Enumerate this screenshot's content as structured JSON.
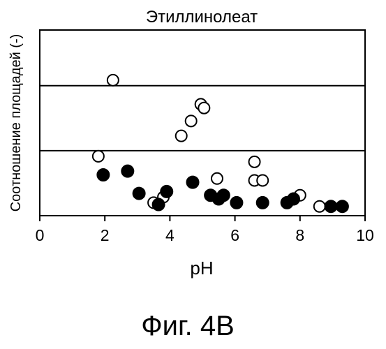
{
  "chart_data": {
    "type": "scatter",
    "title": "Этиллинолеат",
    "xlabel": "pH",
    "ylabel": "Соотношение площадей (-)",
    "xlim": [
      0,
      10
    ],
    "xticks": [
      "0",
      "2",
      "4",
      "6",
      "8",
      "10"
    ],
    "yticks": [],
    "grid": "horizontal lines",
    "series": [
      {
        "marker": "open-circle",
        "points": [
          {
            "x": 1.8,
            "y": 0.32
          },
          {
            "x": 2.25,
            "y": 0.73
          },
          {
            "x": 3.5,
            "y": 0.07
          },
          {
            "x": 3.8,
            "y": 0.1
          },
          {
            "x": 4.35,
            "y": 0.43
          },
          {
            "x": 4.65,
            "y": 0.51
          },
          {
            "x": 4.95,
            "y": 0.6
          },
          {
            "x": 5.05,
            "y": 0.58
          },
          {
            "x": 5.45,
            "y": 0.2
          },
          {
            "x": 6.6,
            "y": 0.29
          },
          {
            "x": 6.6,
            "y": 0.19
          },
          {
            "x": 6.85,
            "y": 0.19
          },
          {
            "x": 8.0,
            "y": 0.11
          },
          {
            "x": 8.6,
            "y": 0.05
          }
        ]
      },
      {
        "marker": "filled-circle",
        "points": [
          {
            "x": 1.95,
            "y": 0.22
          },
          {
            "x": 2.7,
            "y": 0.24
          },
          {
            "x": 3.05,
            "y": 0.12
          },
          {
            "x": 3.65,
            "y": 0.06
          },
          {
            "x": 3.9,
            "y": 0.13
          },
          {
            "x": 4.7,
            "y": 0.18
          },
          {
            "x": 5.25,
            "y": 0.11
          },
          {
            "x": 5.5,
            "y": 0.09
          },
          {
            "x": 5.65,
            "y": 0.11
          },
          {
            "x": 6.05,
            "y": 0.07
          },
          {
            "x": 6.85,
            "y": 0.07
          },
          {
            "x": 7.6,
            "y": 0.07
          },
          {
            "x": 7.8,
            "y": 0.09
          },
          {
            "x": 8.95,
            "y": 0.05
          },
          {
            "x": 9.3,
            "y": 0.05
          }
        ]
      }
    ],
    "gridlines_y": [
      0.35,
      0.7
    ],
    "ylim": [
      0,
      1
    ]
  },
  "caption": "Фиг. 4B"
}
